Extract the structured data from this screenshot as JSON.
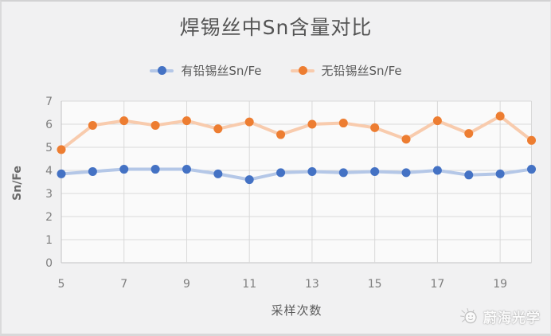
{
  "title": "焊锡丝中Sn含量对比",
  "legend": {
    "items": [
      {
        "label": "有铅锡丝Sn/Fe",
        "marker_color": "#4472C4",
        "line_color": "#B4C7E7"
      },
      {
        "label": "无铅锡丝Sn/Fe",
        "marker_color": "#ED7D31",
        "line_color": "#F8CBAD"
      }
    ]
  },
  "chart_data": {
    "type": "line",
    "title": "焊锡丝中Sn含量对比",
    "x": [
      5,
      6,
      7,
      8,
      9,
      10,
      11,
      12,
      13,
      14,
      15,
      16,
      17,
      18,
      19,
      20
    ],
    "series": [
      {
        "name": "有铅锡丝Sn/Fe",
        "marker_color": "#4472C4",
        "line_color": "#B4C7E7",
        "values": [
          3.85,
          3.95,
          4.05,
          4.05,
          4.05,
          3.85,
          3.6,
          3.9,
          3.95,
          3.9,
          3.95,
          3.9,
          4.0,
          3.8,
          3.85,
          4.05
        ]
      },
      {
        "name": "无铅锡丝Sn/Fe",
        "marker_color": "#ED7D31",
        "line_color": "#F8CBAD",
        "values": [
          4.9,
          5.95,
          6.15,
          5.95,
          6.15,
          5.8,
          6.1,
          5.55,
          6.0,
          6.05,
          5.85,
          5.35,
          6.15,
          5.6,
          6.35,
          5.3
        ]
      }
    ],
    "xlabel": "采样次数",
    "ylabel": "Sn/Fe",
    "xlim": [
      5,
      20
    ],
    "ylim": [
      0,
      7
    ],
    "x_ticks": [
      5,
      7,
      9,
      11,
      13,
      15,
      17,
      19
    ],
    "y_ticks": [
      0,
      1,
      2,
      3,
      4,
      5,
      6,
      7
    ],
    "grid": true,
    "legend_position": "top",
    "grid_color": "#d9d9d9",
    "axis_color": "#c3c3c4",
    "tick_color": "#7f7f7f",
    "plot_bg": "#fafafa"
  },
  "watermark": {
    "text": "蔚海光学",
    "icon": "sun-face-icon"
  }
}
